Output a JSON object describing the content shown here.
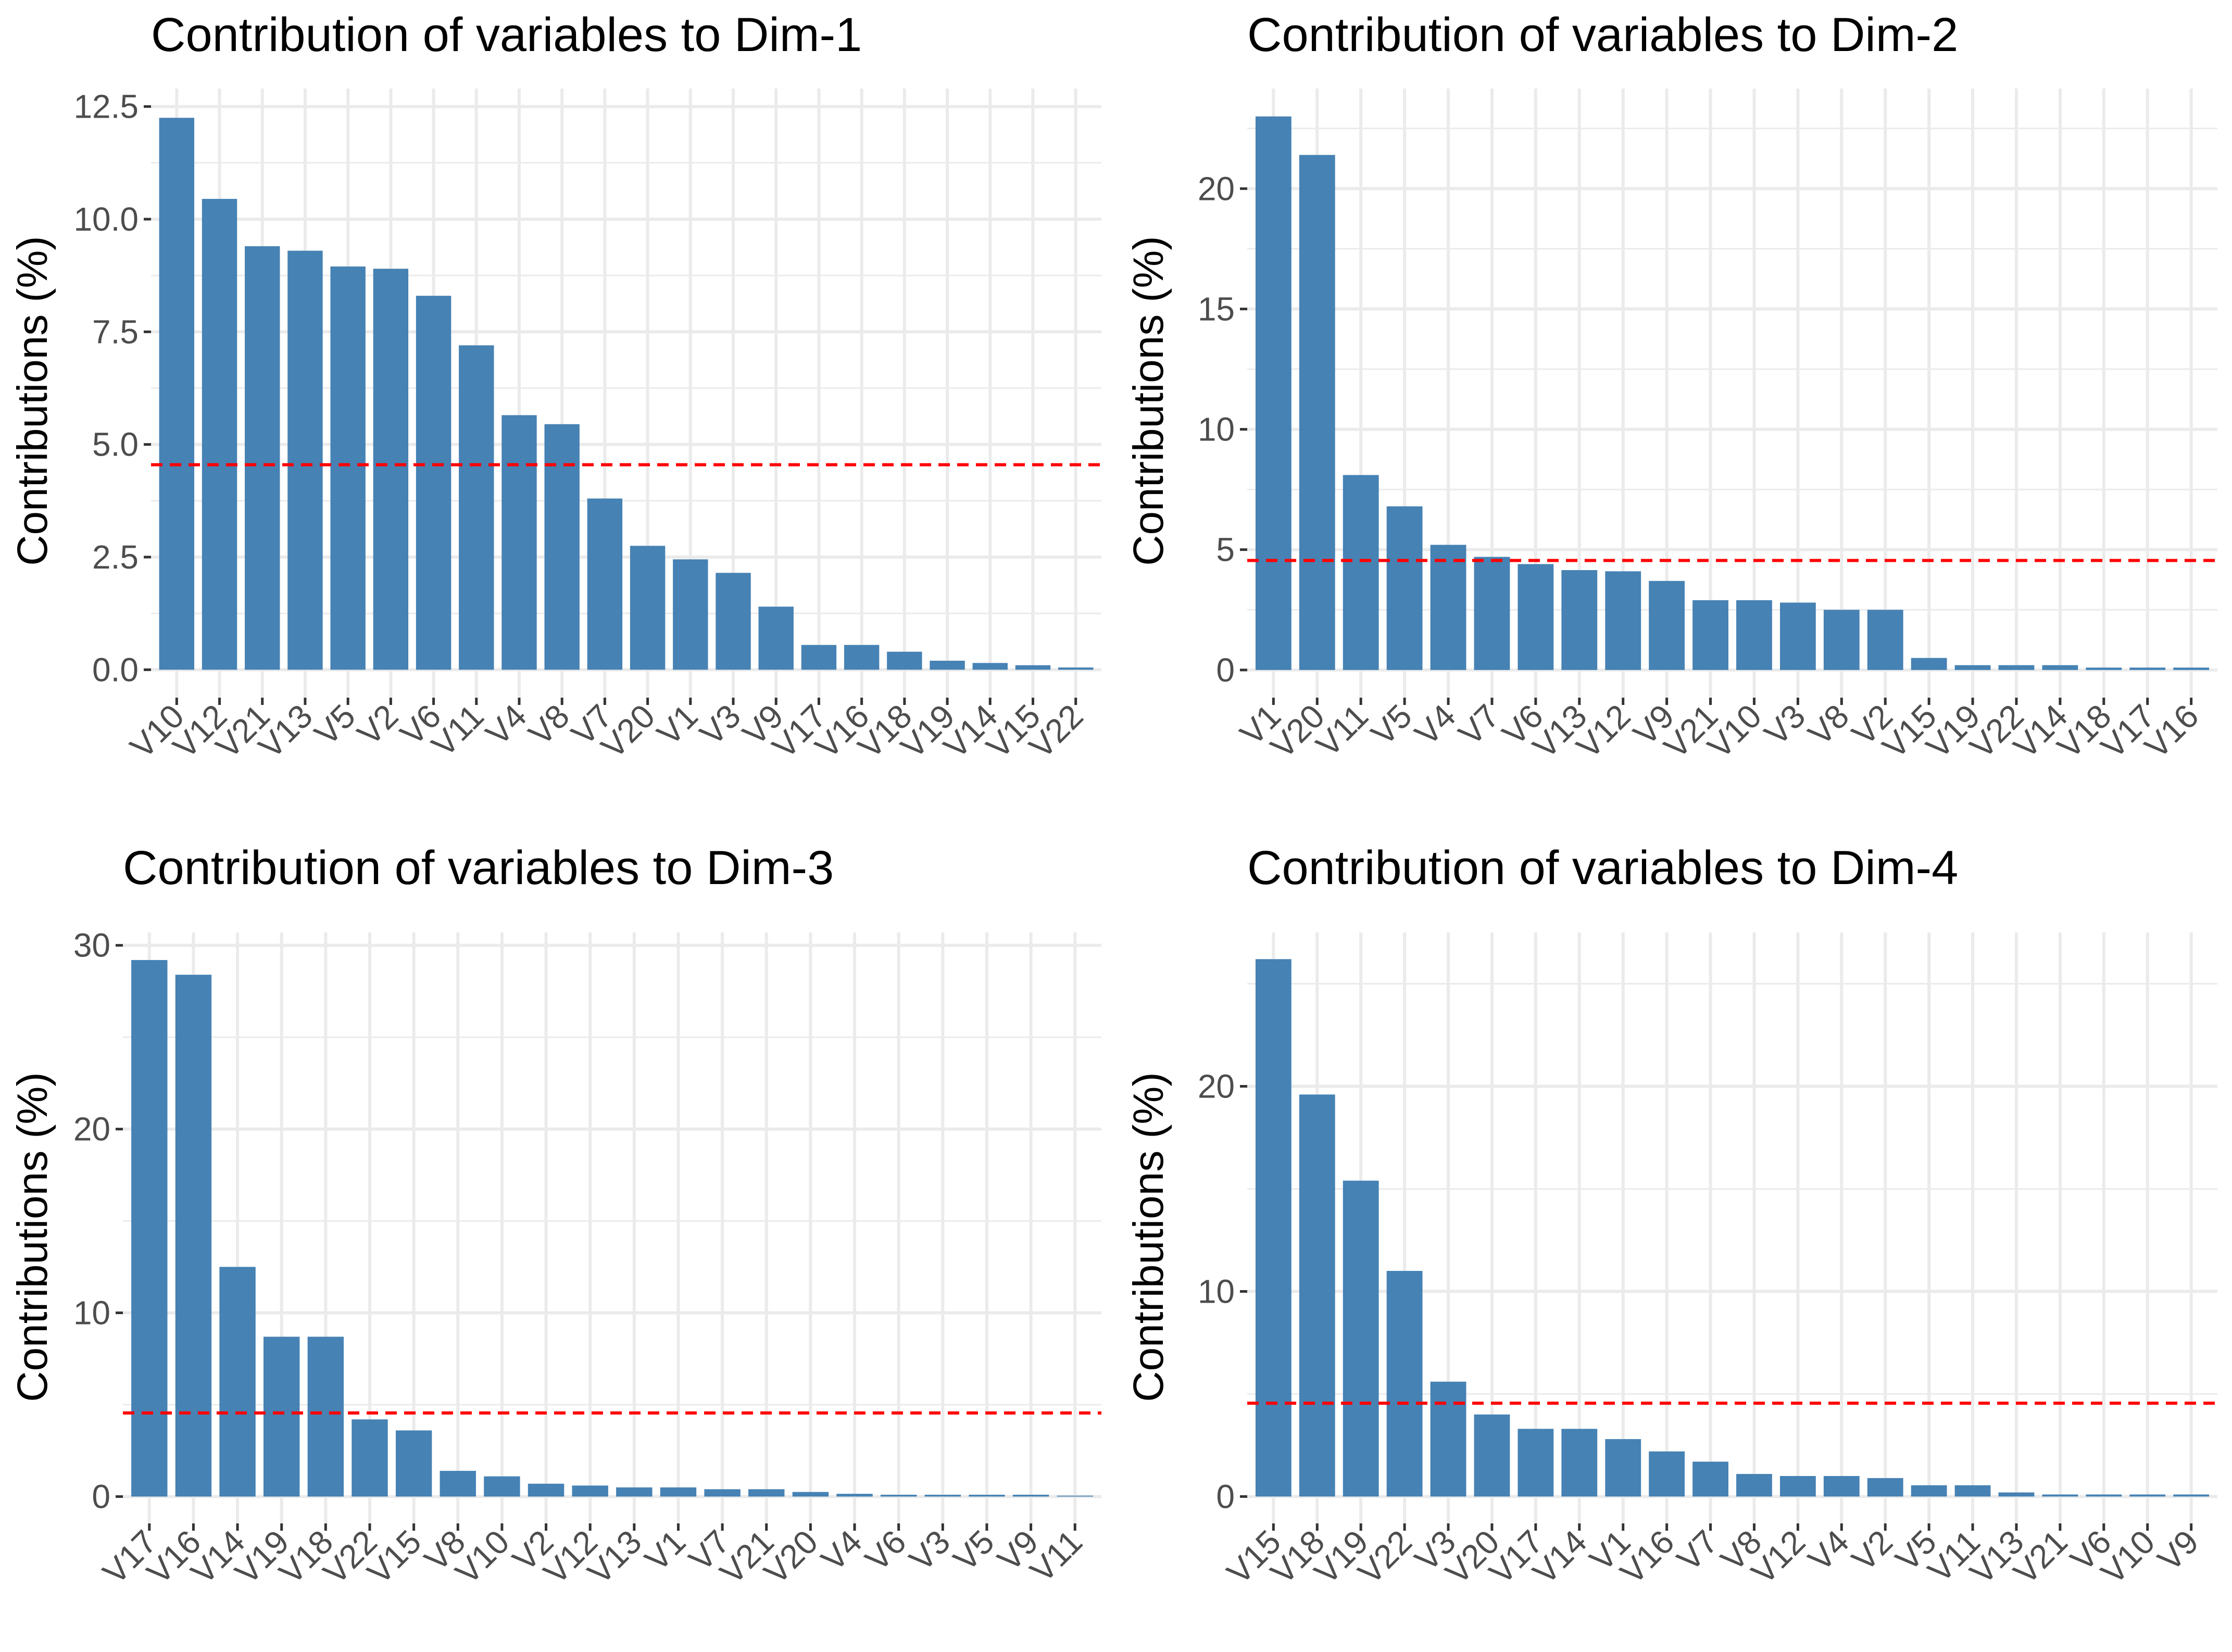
{
  "colors": {
    "bar": "#4682B4",
    "threshold": "#FF0000",
    "grid": "#EBEBEB",
    "tick_text": "#4D4D4D",
    "axis_tick": "#333333"
  },
  "chart_data": [
    {
      "type": "bar",
      "title": "Contribution of variables to Dim-1",
      "xlabel": "",
      "ylabel": "Contributions (%)",
      "categories": [
        "V10",
        "V12",
        "V21",
        "V13",
        "V5",
        "V2",
        "V6",
        "V11",
        "V4",
        "V8",
        "V7",
        "V20",
        "V1",
        "V3",
        "V9",
        "V17",
        "V16",
        "V18",
        "V19",
        "V14",
        "V15",
        "V22"
      ],
      "values": [
        12.25,
        10.45,
        9.4,
        9.3,
        8.95,
        8.9,
        8.3,
        7.2,
        5.65,
        5.45,
        3.8,
        2.75,
        2.45,
        2.15,
        1.4,
        0.55,
        0.55,
        0.4,
        0.2,
        0.15,
        0.1,
        0.05
      ],
      "reference_line": 4.55,
      "yticks": [
        0.0,
        2.5,
        5.0,
        7.5,
        10.0,
        12.5
      ],
      "ytick_labels": [
        "0.0",
        "2.5",
        "5.0",
        "7.5",
        "10.0",
        "12.5"
      ],
      "ylim": [
        -0.62,
        12.9
      ],
      "grid": true
    },
    {
      "type": "bar",
      "title": "Contribution of variables to Dim-2",
      "xlabel": "",
      "ylabel": "Contributions (%)",
      "categories": [
        "V1",
        "V20",
        "V11",
        "V5",
        "V4",
        "V7",
        "V6",
        "V13",
        "V12",
        "V9",
        "V21",
        "V10",
        "V3",
        "V8",
        "V2",
        "V15",
        "V19",
        "V22",
        "V14",
        "V18",
        "V17",
        "V16"
      ],
      "values": [
        23.0,
        21.4,
        8.1,
        6.8,
        5.2,
        4.7,
        4.4,
        4.15,
        4.1,
        3.7,
        2.9,
        2.9,
        2.8,
        2.5,
        2.5,
        0.5,
        0.2,
        0.2,
        0.2,
        0.1,
        0.1,
        0.1
      ],
      "reference_line": 4.55,
      "yticks": [
        0,
        5,
        10,
        15,
        20
      ],
      "ytick_labels": [
        "0",
        "5",
        "10",
        "15",
        "20"
      ],
      "ylim": [
        -1.15,
        24.16
      ],
      "grid": true
    },
    {
      "type": "bar",
      "title": "Contribution of variables to Dim-3",
      "xlabel": "",
      "ylabel": "Contributions (%)",
      "categories": [
        "V17",
        "V16",
        "V14",
        "V19",
        "V18",
        "V22",
        "V15",
        "V8",
        "V10",
        "V2",
        "V12",
        "V13",
        "V1",
        "V7",
        "V21",
        "V20",
        "V4",
        "V6",
        "V3",
        "V5",
        "V9",
        "V11"
      ],
      "values": [
        29.2,
        28.4,
        12.5,
        8.7,
        8.7,
        4.2,
        3.6,
        1.4,
        1.1,
        0.7,
        0.6,
        0.5,
        0.5,
        0.4,
        0.4,
        0.25,
        0.15,
        0.1,
        0.1,
        0.1,
        0.1,
        0.05
      ],
      "reference_line": 4.55,
      "yticks": [
        0,
        10,
        20,
        30
      ],
      "ytick_labels": [
        "0",
        "10",
        "20",
        "30"
      ],
      "ylim": [
        -1.46,
        30.7
      ],
      "grid": true
    },
    {
      "type": "bar",
      "title": "Contribution of variables to Dim-4",
      "xlabel": "",
      "ylabel": "Contributions (%)",
      "categories": [
        "V15",
        "V18",
        "V19",
        "V22",
        "V3",
        "V20",
        "V17",
        "V14",
        "V1",
        "V16",
        "V7",
        "V8",
        "V12",
        "V4",
        "V2",
        "V5",
        "V11",
        "V13",
        "V21",
        "V6",
        "V10",
        "V9"
      ],
      "values": [
        26.2,
        19.6,
        15.4,
        11.0,
        5.6,
        4.0,
        3.3,
        3.3,
        2.8,
        2.2,
        1.7,
        1.1,
        1.0,
        1.0,
        0.9,
        0.55,
        0.55,
        0.2,
        0.1,
        0.1,
        0.1,
        0.1
      ],
      "reference_line": 4.55,
      "yticks": [
        0,
        10,
        20
      ],
      "ytick_labels": [
        "0",
        "10",
        "20"
      ],
      "ylim": [
        -1.31,
        27.5
      ],
      "grid": true
    }
  ]
}
